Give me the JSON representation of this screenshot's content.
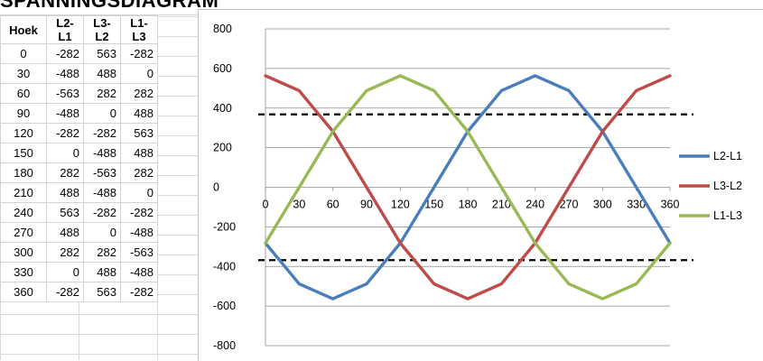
{
  "sheet": {
    "title": "SPANNINGSDIAGRAM",
    "headers": [
      "Hoek",
      "L2-L1",
      "L3-L2",
      "L1-L3"
    ],
    "rows": [
      [
        "0",
        "-282",
        "563",
        "-282"
      ],
      [
        "30",
        "-488",
        "488",
        "0"
      ],
      [
        "60",
        "-563",
        "282",
        "282"
      ],
      [
        "90",
        "-488",
        "0",
        "488"
      ],
      [
        "120",
        "-282",
        "-282",
        "563"
      ],
      [
        "150",
        "0",
        "-488",
        "488"
      ],
      [
        "180",
        "282",
        "-563",
        "282"
      ],
      [
        "210",
        "488",
        "-488",
        "0"
      ],
      [
        "240",
        "563",
        "-282",
        "-282"
      ],
      [
        "270",
        "488",
        "0",
        "-488"
      ],
      [
        "300",
        "282",
        "282",
        "-563"
      ],
      [
        "330",
        "0",
        "488",
        "-488"
      ],
      [
        "360",
        "-282",
        "563",
        "-282"
      ]
    ]
  },
  "chart_data": {
    "type": "line",
    "title": "",
    "xlabel": "",
    "ylabel": "",
    "categories": [
      "0",
      "30",
      "60",
      "90",
      "120",
      "150",
      "180",
      "210",
      "240",
      "270",
      "300",
      "330",
      "360"
    ],
    "ylim": [
      -800,
      800
    ],
    "yticks": [
      800,
      600,
      400,
      200,
      0,
      -200,
      -400,
      -600,
      -800
    ],
    "grid": "horizontal",
    "legend": "right",
    "series": [
      {
        "name": "L2-L1",
        "color": "#4a7ebb",
        "values": [
          -282,
          -488,
          -563,
          -488,
          -282,
          0,
          282,
          488,
          563,
          488,
          282,
          0,
          -282
        ]
      },
      {
        "name": "L3-L2",
        "color": "#be4b48",
        "values": [
          563,
          488,
          282,
          0,
          -282,
          -488,
          -563,
          -488,
          -282,
          0,
          282,
          488,
          563
        ]
      },
      {
        "name": "L1-L3",
        "color": "#98b954",
        "values": [
          -282,
          0,
          282,
          488,
          563,
          488,
          282,
          0,
          -282,
          -488,
          -563,
          -488,
          -282
        ]
      }
    ],
    "reference_lines": [
      {
        "y": 368,
        "style": "dashed",
        "color": "#000000"
      },
      {
        "y": -368,
        "style": "dashed",
        "color": "#000000"
      }
    ]
  }
}
